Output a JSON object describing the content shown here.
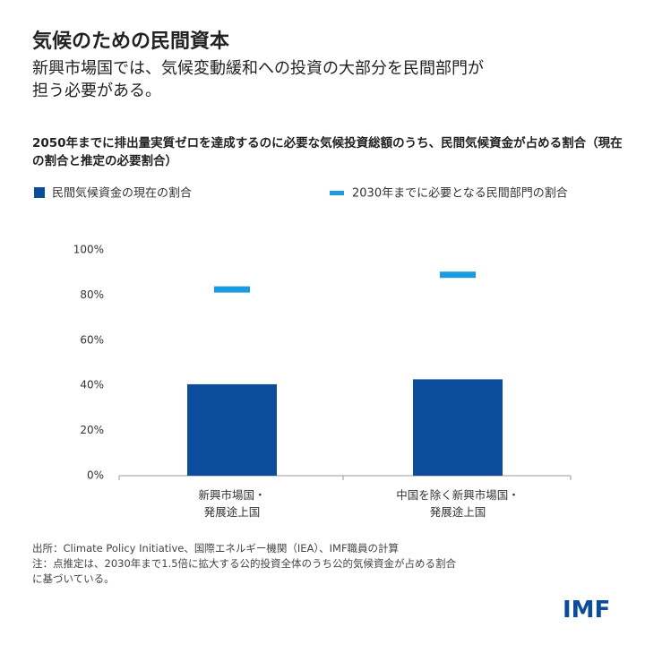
{
  "chart_data": {
    "type": "bar",
    "title": "気候のための民間資本",
    "subtitle": "新興市場国では、気候変動緩和への投資の大部分を民間部門が\n担う必要がある。",
    "chart_title": "2050年までに排出量実質ゼロを達成するのに必要な気候投資総額のうち、民間気候資金が占める割合（現在の割合と推定の必要割合）",
    "categories": [
      "新興市場国・\n発展途上国",
      "中国を除く新興市場国・\n発展途上国"
    ],
    "series": [
      {
        "name": "民間気候資金の現在の割合",
        "color": "#0b4c9c",
        "style": "bar",
        "values": [
          40.5,
          42.7
        ]
      },
      {
        "name": "2030年までに必要となる民間部門の割合",
        "color": "#1a9be0",
        "style": "marker",
        "values": [
          82.5,
          89
        ]
      }
    ],
    "ylim": [
      0,
      100
    ],
    "yticks": [
      {
        "value": 0,
        "label": "0%"
      },
      {
        "value": 20,
        "label": "20%"
      },
      {
        "value": 40,
        "label": "40%"
      },
      {
        "value": 60,
        "label": "60%"
      },
      {
        "value": 80,
        "label": "80%"
      },
      {
        "value": 100,
        "label": "100%"
      }
    ],
    "grid": false,
    "source": "出所：Climate Policy Initiative、国際エネルギー機関（IEA）、IMF職員の計算",
    "note": "注：点推定は、2030年まで1.5倍に拡大する公的投資全体のうち公的気候資金が占める割合\nに基づいている。",
    "logo": "IMF"
  }
}
